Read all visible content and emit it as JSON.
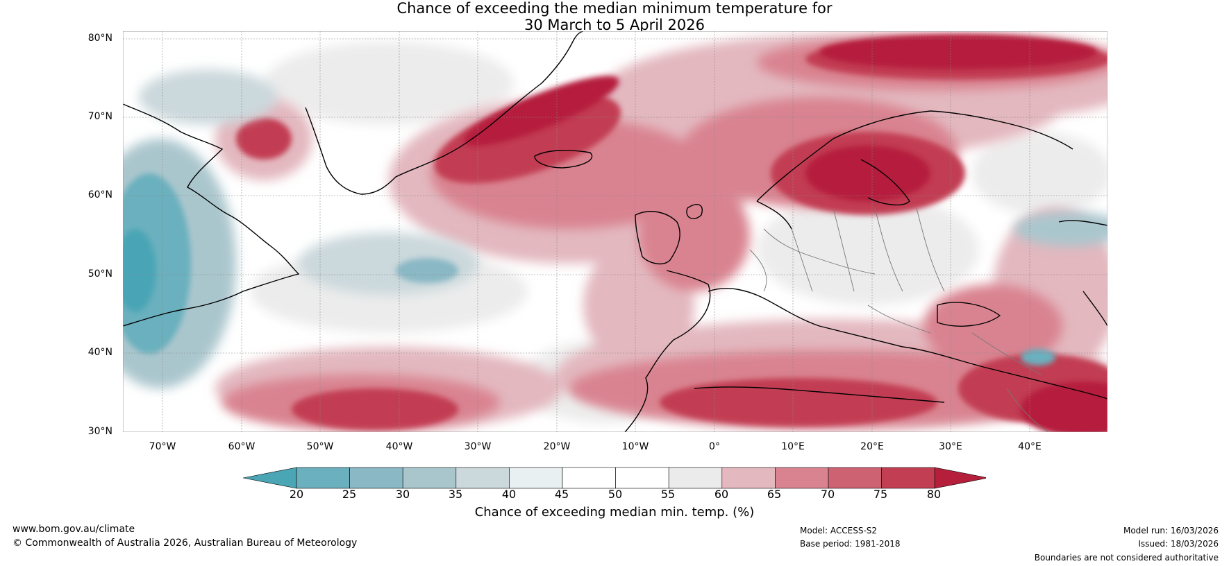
{
  "title": {
    "line1": "Chance of exceeding the median minimum temperature for",
    "line2": "30 March to 5 April 2026"
  },
  "axes": {
    "lat_ticks": [
      "80°N",
      "70°N",
      "60°N",
      "50°N",
      "40°N",
      "30°N"
    ],
    "lon_ticks": [
      "70°W",
      "60°W",
      "50°W",
      "40°W",
      "30°W",
      "20°W",
      "10°W",
      "0°",
      "10°E",
      "20°E",
      "30°E",
      "40°E"
    ]
  },
  "colorbar": {
    "title": "Chance of exceeding median min. temp. (%)",
    "labels": [
      "20",
      "25",
      "30",
      "35",
      "40",
      "45",
      "50",
      "55",
      "60",
      "65",
      "70",
      "75",
      "80"
    ],
    "colors": [
      "#4aa5b5",
      "#6bb0be",
      "#8ab8c5",
      "#aac6cd",
      "#cbd8dc",
      "#e9f0f2",
      "#ffffff",
      "#ffffff",
      "#ecebeb",
      "#e3b8bf",
      "#d98390",
      "#cc6272",
      "#c23e52",
      "#b51f3c"
    ]
  },
  "footer": {
    "website": "www.bom.gov.au/climate",
    "copyright": "© Commonwealth of Australia 2026, Australian Bureau of Meteorology",
    "model": "Model: ACCESS-S2",
    "base_period": "Base period: 1981-2018",
    "model_run": "Model run: 16/03/2026",
    "issued": "Issued: 18/03/2026",
    "disclaimer": "Boundaries are not considered authoritative"
  }
}
